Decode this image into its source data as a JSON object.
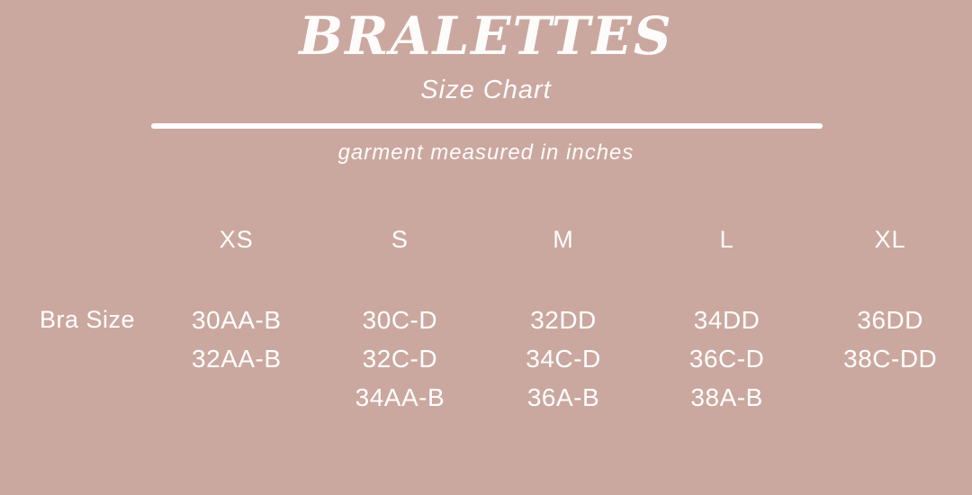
{
  "chart_data": {
    "type": "table",
    "title": "BRALETTES",
    "subtitle": "Size Chart",
    "note": "garment measured in inches",
    "row_label": "Bra Size",
    "columns": [
      {
        "label": "XS",
        "values": [
          "30AA-B",
          "32AA-B"
        ]
      },
      {
        "label": "S",
        "values": [
          "30C-D",
          "32C-D",
          "34AA-B"
        ]
      },
      {
        "label": "M",
        "values": [
          "32DD",
          "34C-D",
          "36A-B"
        ]
      },
      {
        "label": "L",
        "values": [
          "34DD",
          "36C-D",
          "38A-B"
        ]
      },
      {
        "label": "XL",
        "values": [
          "36DD",
          "38C-DD"
        ]
      }
    ]
  },
  "colors": {
    "background": "#cba89f",
    "text": "#ffffff"
  }
}
